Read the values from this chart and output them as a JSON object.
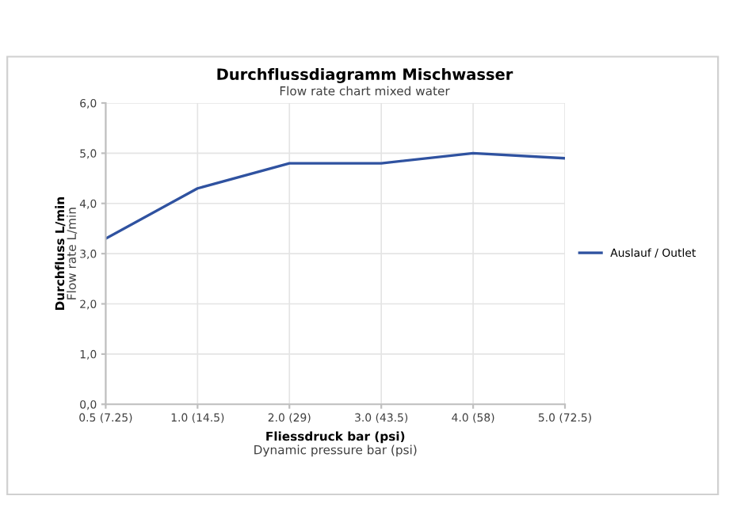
{
  "chart_data": {
    "type": "line",
    "title": "Durchflussdiagramm Mischwasser",
    "subtitle": "Flow rate chart mixed water",
    "xlabel": "Fliessdruck bar (psi)\nDynamic pressure bar (psi)",
    "ylabel": "Durchfluss L/min\nFlow rate L/min",
    "categories": [
      "0.5 (7.25)",
      "1.0 (14.5)",
      "2.0 (29)",
      "3.0 (43.5)",
      "4.0 (58)",
      "5.0 (72.5)"
    ],
    "series": [
      {
        "name": "Auslauf / Outlet",
        "color": "#2f52a0",
        "values": [
          3.3,
          4.3,
          4.8,
          4.8,
          5.0,
          4.9
        ]
      }
    ],
    "ylim": [
      0,
      6
    ],
    "yticks": [
      {
        "value": 0,
        "label": "0,0"
      },
      {
        "value": 1,
        "label": "1,0"
      },
      {
        "value": 2,
        "label": "2,0"
      },
      {
        "value": 3,
        "label": "3,0"
      },
      {
        "value": 4,
        "label": "4,0"
      },
      {
        "value": 5,
        "label": "5,0"
      },
      {
        "value": 6,
        "label": "6,0"
      }
    ],
    "grid": true,
    "legend": "right",
    "marker": "none",
    "line_style": "solid"
  }
}
